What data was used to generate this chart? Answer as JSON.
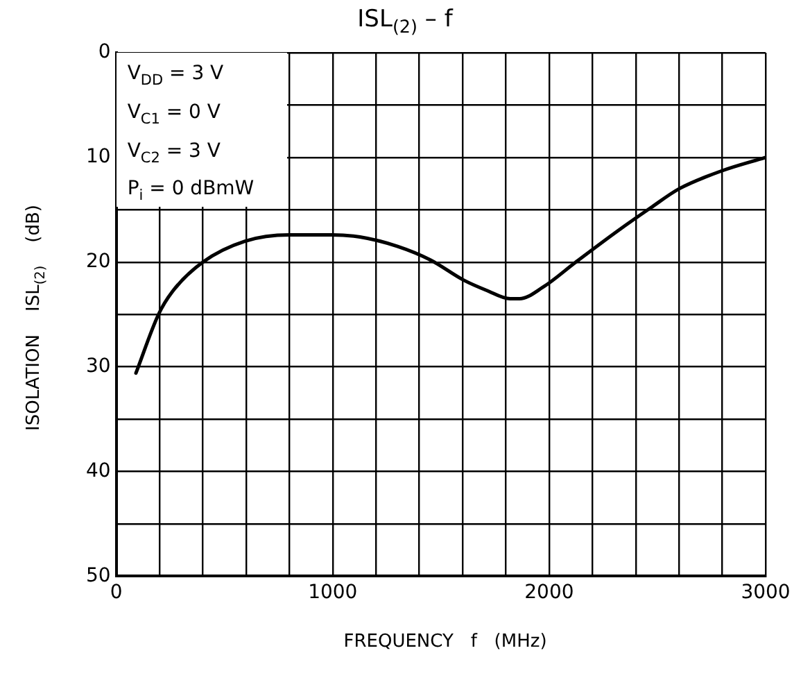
{
  "chart_data": {
    "type": "line",
    "title": "ISL$_{(2)}$  –  f",
    "xlabel": "FREQUENCY   f   (MHz)",
    "ylabel": "ISOLATION    ISL$_{(2)}$    (dB)",
    "annotations": [
      "V$_{DD}$ = 3 V",
      "V$_{C1}$ = 0 V",
      "V$_{C2}$ = 3 V",
      "P$_{i}$ = 0 dBmW"
    ],
    "x": [
      91,
      195,
      260,
      400,
      595,
      800,
      996,
      1126,
      1300,
      1452,
      1603,
      1711,
      1820,
      1863,
      1971,
      2123,
      2318,
      2470,
      2600,
      2795,
      3000
    ],
    "series": [
      {
        "color": "#000000",
        "values": [
          30.6,
          25.0,
          22.8,
          20.0,
          18.0,
          17.4,
          17.4,
          17.6,
          18.5,
          19.8,
          21.7,
          22.7,
          23.5,
          23.5,
          22.4,
          20.0,
          17.0,
          14.8,
          13.0,
          11.3,
          10.0
        ]
      }
    ],
    "xlim": [
      0,
      3000
    ],
    "xticks": [
      0,
      {
        "value": 200,
        "label": null
      },
      {
        "value": 400,
        "label": null
      },
      {
        "value": 600,
        "label": null
      },
      {
        "value": 800,
        "label": null
      },
      1000,
      {
        "value": 1200,
        "label": null
      },
      {
        "value": 1400,
        "label": null
      },
      {
        "value": 1600,
        "label": null
      },
      {
        "value": 1800,
        "label": null
      },
      2000,
      {
        "value": 2200,
        "label": null
      },
      {
        "value": 2400,
        "label": null
      },
      {
        "value": 2600,
        "label": null
      },
      {
        "value": 2800,
        "label": null
      },
      3000
    ],
    "ylim": [
      50,
      0
    ],
    "yticks": [
      0,
      {
        "value": 5,
        "label": null
      },
      10,
      {
        "value": 15,
        "label": null
      },
      20,
      {
        "value": 25,
        "label": null
      },
      30,
      {
        "value": 35,
        "label": null
      },
      40,
      {
        "value": 45,
        "label": null
      },
      50
    ],
    "grid": true,
    "marker": "none",
    "line_style": "solid",
    "legend": false
  }
}
